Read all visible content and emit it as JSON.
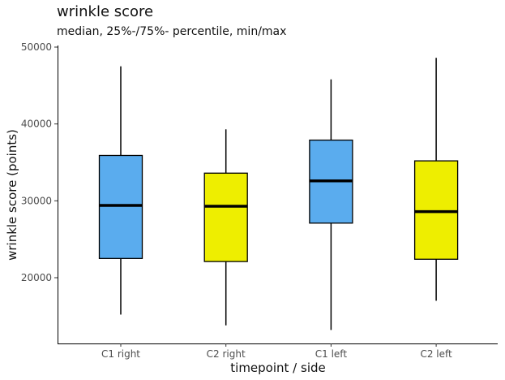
{
  "chart_data": {
    "type": "boxplot",
    "title": "wrinkle score",
    "subtitle": "median, 25%-/75%- percentile, min/max",
    "xlabel": "timepoint / side",
    "ylabel": "wrinkle score (points)",
    "ylim": [
      10800,
      50000
    ],
    "yticks": [
      20000,
      30000,
      40000,
      50000
    ],
    "categories": [
      "C1 right",
      "C2 right",
      "C1 left",
      "C2 left"
    ],
    "boxes": [
      {
        "min": 15200,
        "q1": 22500,
        "median": 29400,
        "q3": 35900,
        "max": 47500,
        "color": "#5aacee"
      },
      {
        "min": 13800,
        "q1": 22100,
        "median": 29300,
        "q3": 33600,
        "max": 39300,
        "color": "#eeee00"
      },
      {
        "min": 13200,
        "q1": 27100,
        "median": 32600,
        "q3": 37900,
        "max": 45800,
        "color": "#5aacee"
      },
      {
        "min": 17000,
        "q1": 22400,
        "median": 28600,
        "q3": 35200,
        "max": 48600,
        "color": "#eeee00"
      }
    ],
    "grid": false,
    "legend": "none"
  }
}
